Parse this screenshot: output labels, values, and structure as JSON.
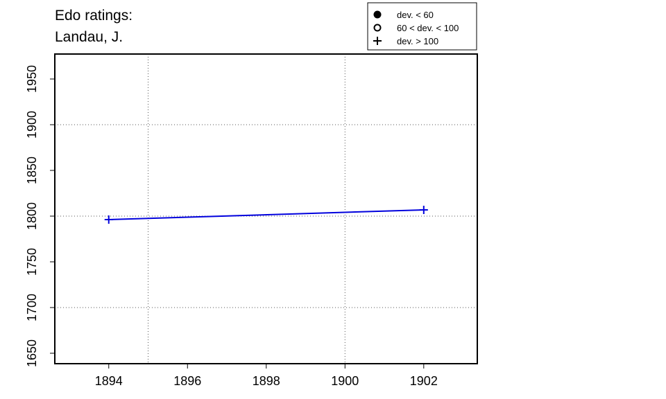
{
  "chart_data": {
    "type": "line",
    "title": [
      "Edo ratings:",
      "Landau, J."
    ],
    "x": [
      1894,
      1902
    ],
    "series": [
      {
        "color": "#0000dd",
        "marker": "plus",
        "values": [
          1796.2,
          1806.8
        ]
      }
    ],
    "xlim": [
      1892.63,
      1903.36
    ],
    "ylim": [
      1638.6,
      1977.3
    ],
    "xticks": [
      1894,
      1896,
      1898,
      1900,
      1902
    ],
    "yticks": [
      1650,
      1700,
      1750,
      1800,
      1850,
      1900,
      1950
    ],
    "xgrid": [
      1895,
      1900
    ],
    "ygrid": [
      1700,
      1800,
      1900
    ],
    "legend": [
      {
        "label": "dev. < 60",
        "marker": "filled"
      },
      {
        "label": "60 < dev. < 100",
        "marker": "open"
      },
      {
        "label": "dev. > 100",
        "marker": "plus"
      }
    ],
    "legend_position": "top"
  }
}
